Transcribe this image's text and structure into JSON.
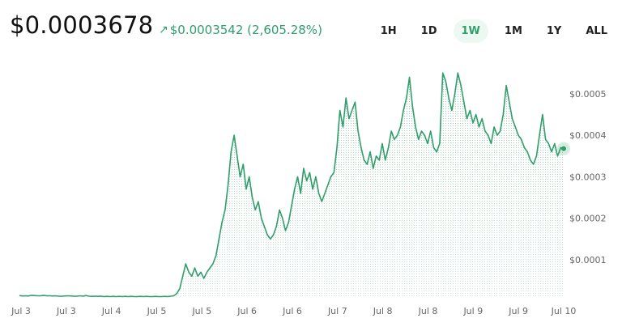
{
  "header": {
    "price": "$0.0003678",
    "change_arrow_icon": "arrow-up-right-icon",
    "change_text": "$0.0003542 (2,605.28%)",
    "ranges": [
      {
        "label": "1H",
        "active": false
      },
      {
        "label": "1D",
        "active": false
      },
      {
        "label": "1W",
        "active": true
      },
      {
        "label": "1M",
        "active": false
      },
      {
        "label": "1Y",
        "active": false
      },
      {
        "label": "ALL",
        "active": false
      }
    ]
  },
  "colors": {
    "accent": "#2f9e6b",
    "fill": "#2f9e6b",
    "text": "#111111",
    "axis_text": "#666666"
  },
  "chart_data": {
    "type": "area",
    "x_tick_labels": [
      "Jul 3",
      "Jul 3",
      "Jul 4",
      "Jul 5",
      "Jul 5",
      "Jul 6",
      "Jul 6",
      "Jul 7",
      "Jul 8",
      "Jul 8",
      "Jul 9",
      "Jul 9",
      "Jul 10"
    ],
    "y_tick_labels": [
      "$0.0001",
      "$0.0002",
      "$0.0003",
      "$0.0004",
      "$0.0005"
    ],
    "y_ticks": [
      0.0001,
      0.0002,
      0.0003,
      0.0004,
      0.0005
    ],
    "ylim": [
      1e-05,
      0.00057
    ],
    "grid": false,
    "series": [
      {
        "values": [
          1.35e-05,
          1.25e-05,
          1.3e-05,
          1.25e-05,
          1.4e-05,
          1.35e-05,
          1.3e-05,
          1.3e-05,
          1.4e-05,
          1.3e-05,
          1.3e-05,
          1.25e-05,
          1.3e-05,
          1.2e-05,
          1.2e-05,
          1.25e-05,
          1.3e-05,
          1.25e-05,
          1.2e-05,
          1.2e-05,
          1.3e-05,
          1.2e-05,
          1.35e-05,
          1.2e-05,
          1.15e-05,
          1.2e-05,
          1.15e-05,
          1.2e-05,
          1.1e-05,
          1.15e-05,
          1.1e-05,
          1.15e-05,
          1.1e-05,
          1.15e-05,
          1.1e-05,
          1.15e-05,
          1.1e-05,
          1.15e-05,
          1.1e-05,
          1.1e-05,
          1.15e-05,
          1.1e-05,
          1.15e-05,
          1.1e-05,
          1.1e-05,
          1.15e-05,
          1.1e-05,
          1.1e-05,
          1.15e-05,
          1.1e-05,
          1.2e-05,
          1.3e-05,
          1.8e-05,
          3e-05,
          6e-05,
          9e-05,
          7e-05,
          6e-05,
          8e-05,
          6e-05,
          7e-05,
          5.5e-05,
          7e-05,
          8e-05,
          9e-05,
          0.00011,
          0.00015,
          0.00019,
          0.00022,
          0.00028,
          0.00036,
          0.0004,
          0.00035,
          0.0003,
          0.00033,
          0.00027,
          0.0003,
          0.00025,
          0.00022,
          0.00024,
          0.0002,
          0.00018,
          0.00016,
          0.00015,
          0.00016,
          0.00018,
          0.00022,
          0.0002,
          0.00017,
          0.00019,
          0.00023,
          0.00027,
          0.0003,
          0.00026,
          0.00032,
          0.00029,
          0.00031,
          0.00027,
          0.0003,
          0.00026,
          0.00024,
          0.00026,
          0.00028,
          0.0003,
          0.00031,
          0.00037,
          0.00046,
          0.00042,
          0.00049,
          0.00044,
          0.00046,
          0.00048,
          0.00041,
          0.00037,
          0.00034,
          0.00033,
          0.00036,
          0.00032,
          0.00035,
          0.00034,
          0.00038,
          0.00034,
          0.00037,
          0.00041,
          0.00039,
          0.0004,
          0.00042,
          0.00046,
          0.00049,
          0.00054,
          0.00047,
          0.00042,
          0.00039,
          0.00041,
          0.0004,
          0.00038,
          0.00041,
          0.00037,
          0.00036,
          0.00038,
          0.00055,
          0.00053,
          0.00049,
          0.00046,
          0.0005,
          0.00055,
          0.00052,
          0.00048,
          0.00044,
          0.00046,
          0.00043,
          0.00045,
          0.00042,
          0.00044,
          0.00041,
          0.0004,
          0.00038,
          0.00042,
          0.0004,
          0.00041,
          0.00045,
          0.00052,
          0.00048,
          0.00044,
          0.00042,
          0.0004,
          0.00039,
          0.00037,
          0.00036,
          0.00034,
          0.00033,
          0.00035,
          0.0004,
          0.00045,
          0.00039,
          0.00038,
          0.00036,
          0.00038,
          0.00035,
          0.00037,
          0.0003678
        ]
      }
    ],
    "last_value": 0.0003678
  }
}
